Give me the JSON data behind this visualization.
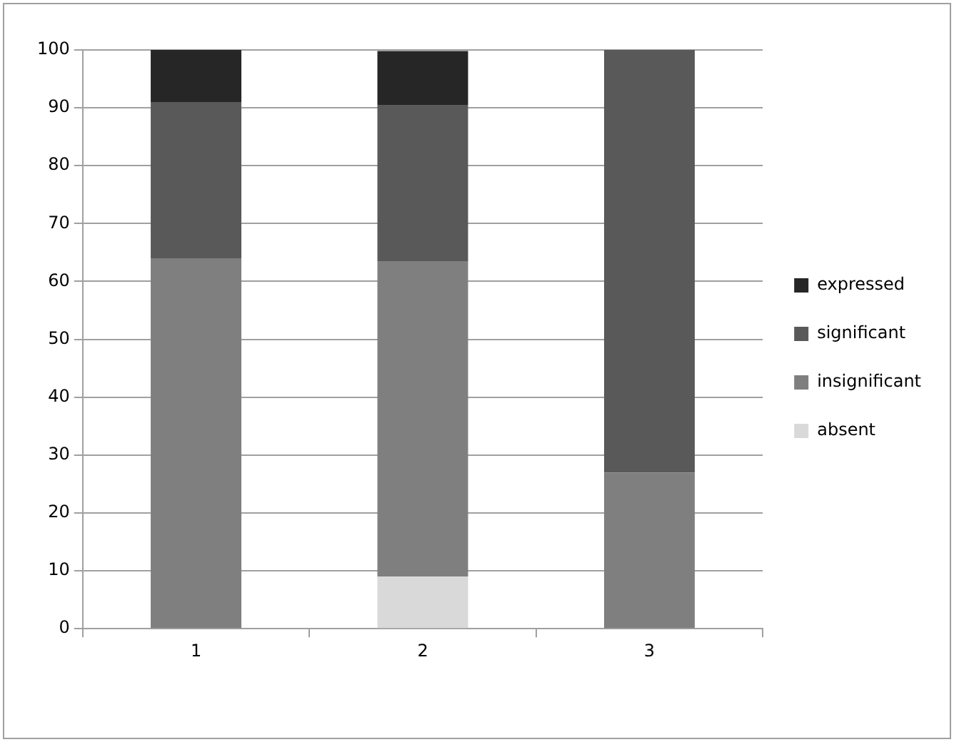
{
  "chart_data": {
    "type": "bar",
    "stacked": true,
    "categories": [
      "1",
      "2",
      "3"
    ],
    "series": [
      {
        "name": "absent",
        "color": "#d9d9d9",
        "values": [
          0,
          9,
          0
        ]
      },
      {
        "name": "insignificant",
        "color": "#7f7f7f",
        "values": [
          64,
          54.5,
          27
        ]
      },
      {
        "name": "significant",
        "color": "#595959",
        "values": [
          27,
          27,
          73
        ]
      },
      {
        "name": "expressed",
        "color": "#262626",
        "values": [
          9,
          9.3,
          0
        ]
      }
    ],
    "ylim": [
      0,
      100
    ],
    "yticks": [
      0,
      10,
      20,
      30,
      40,
      50,
      60,
      70,
      80,
      90,
      100
    ],
    "grid": "y",
    "legend": "right"
  }
}
